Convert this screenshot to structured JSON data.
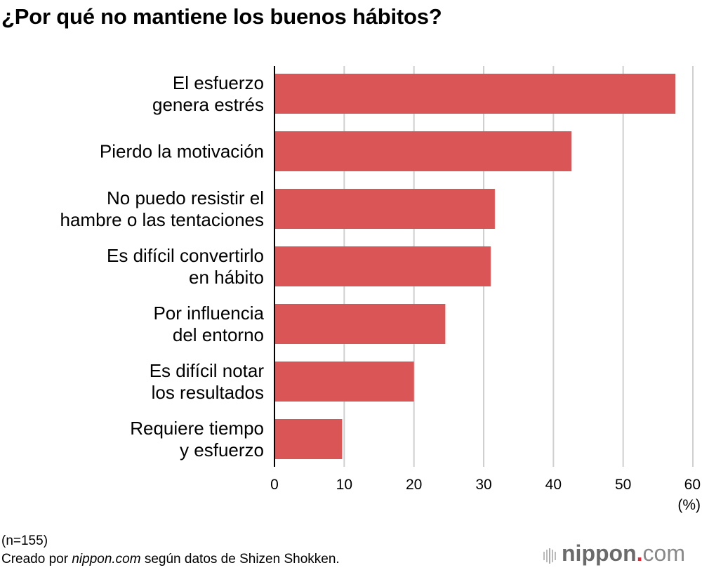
{
  "title": "¿Por qué no mantiene los buenos hábitos?",
  "chart_data": {
    "type": "bar",
    "orientation": "horizontal",
    "categories": [
      [
        "El esfuerzo",
        "genera estrés"
      ],
      [
        "Pierdo la motivación"
      ],
      [
        "No puedo resistir el",
        "hambre o las tentaciones"
      ],
      [
        "Es difícil convertirlo",
        "en hábito"
      ],
      [
        "Por influencia",
        "del entorno"
      ],
      [
        "Es difícil notar",
        "los resultados"
      ],
      [
        "Requiere tiempo",
        "y esfuerzo"
      ]
    ],
    "values": [
      57.5,
      42.6,
      31.6,
      31.0,
      24.5,
      20.0,
      9.7
    ],
    "xlim": [
      0,
      60
    ],
    "xticks": [
      "0",
      "10",
      "20",
      "30",
      "40",
      "50",
      "60"
    ],
    "xlabel": "(%)",
    "grid": true,
    "bar_color": "#d95556"
  },
  "footer": {
    "sample": "(n=155)",
    "source_prefix": "Creado por ",
    "source_site": "nippon.com",
    "source_suffix": " según datos de Shizen Shokken."
  },
  "logo": {
    "name": "nippon",
    "dot": ".",
    "tld": "com"
  }
}
